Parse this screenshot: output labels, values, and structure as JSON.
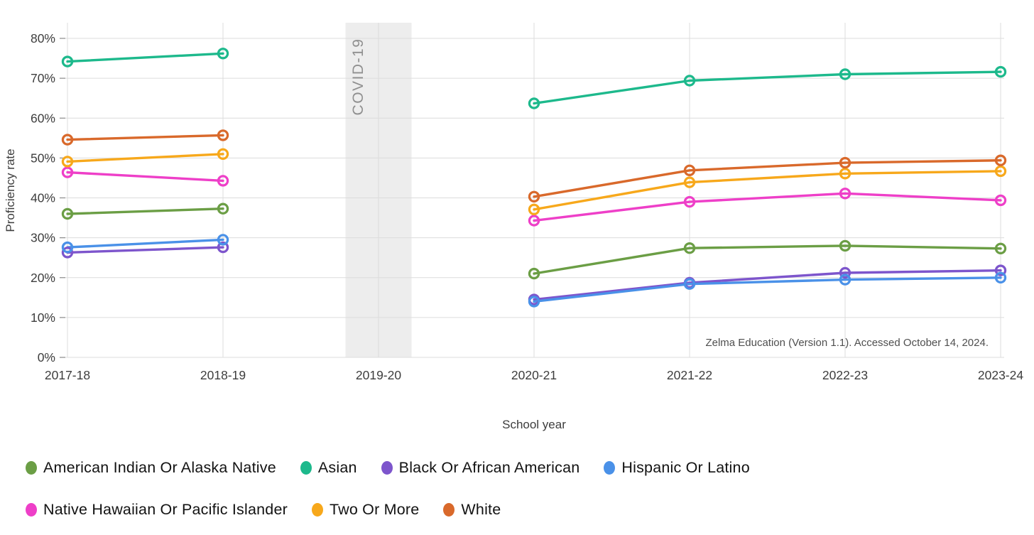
{
  "chart_data": {
    "type": "line",
    "title": "",
    "xlabel": "School year",
    "ylabel": "Proficiency rate",
    "categories": [
      "2017-18",
      "2018-19",
      "2019-20",
      "2020-21",
      "2021-22",
      "2022-23",
      "2023-24"
    ],
    "y_ticks": [
      0,
      10,
      20,
      30,
      40,
      50,
      60,
      70,
      80
    ],
    "y_tick_suffix": "%",
    "ylim": [
      0,
      84
    ],
    "grid": true,
    "legend_position": "bottom",
    "marker_style": "open-circle",
    "series": [
      {
        "name": "American Indian Or Alaska Native",
        "color": "#6B9E45",
        "values": [
          36.0,
          37.3,
          null,
          21.0,
          27.4,
          28.0,
          27.3
        ]
      },
      {
        "name": "Asian",
        "color": "#1DB98C",
        "values": [
          74.2,
          76.2,
          null,
          63.7,
          69.4,
          71.0,
          71.6
        ]
      },
      {
        "name": "Black Or African American",
        "color": "#7D55CC",
        "values": [
          26.3,
          27.6,
          null,
          14.5,
          18.7,
          21.2,
          21.8
        ]
      },
      {
        "name": "Hispanic Or Latino",
        "color": "#4A91E8",
        "values": [
          27.6,
          29.5,
          null,
          14.0,
          18.4,
          19.5,
          20.0
        ]
      },
      {
        "name": "Native Hawaiian Or Pacific Islander",
        "color": "#EE3FC8",
        "values": [
          46.4,
          44.3,
          null,
          34.3,
          39.0,
          41.1,
          39.4
        ]
      },
      {
        "name": "Two Or More",
        "color": "#F7A81B",
        "values": [
          49.1,
          51.0,
          null,
          37.1,
          43.9,
          46.1,
          46.7
        ]
      },
      {
        "name": "White",
        "color": "#D9692B",
        "values": [
          54.6,
          55.7,
          null,
          40.3,
          46.9,
          48.8,
          49.4
        ]
      }
    ],
    "annotations": {
      "covid_band": {
        "label": "COVID-19",
        "category": "2019-20",
        "band_color": "#EDEDED",
        "label_color": "#8F8F8F"
      }
    },
    "attribution": "Zelma Education (Version 1.1). Accessed October 14, 2024.",
    "colors": {
      "gridline": "#DCDCDC",
      "tick": "#8A8A8A",
      "axis_text": "#3D3D3D",
      "attribution_text": "#4F4F4F"
    }
  }
}
